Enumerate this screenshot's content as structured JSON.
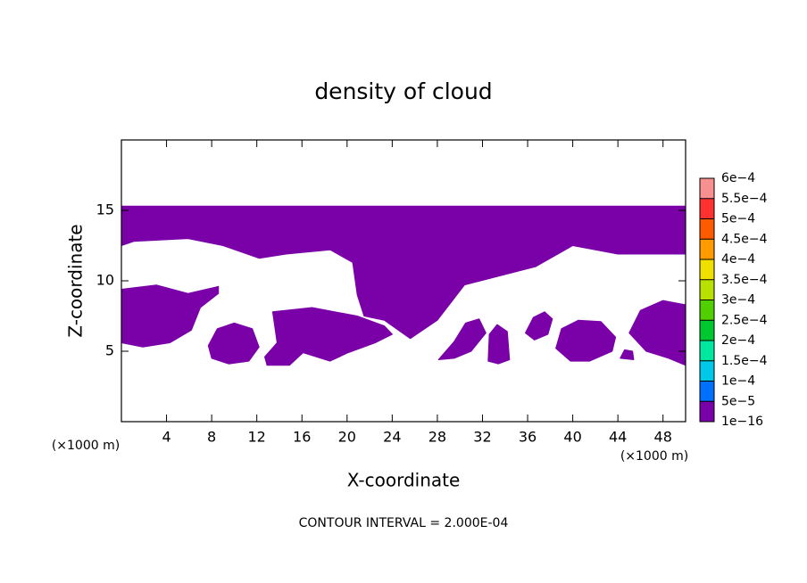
{
  "chart_data": {
    "type": "contour",
    "title": "density of cloud",
    "x_label": "X-coordinate",
    "y_label": "Z-coordinate",
    "x_unit": "(×1000 m)",
    "y_unit": "(×1000 m)",
    "annotation": "CONTOUR INTERVAL = 2.000E-04",
    "xlim": [
      0,
      50
    ],
    "ylim": [
      0,
      20
    ],
    "xticks": [
      4,
      8,
      12,
      16,
      20,
      24,
      28,
      32,
      36,
      40,
      44,
      48
    ],
    "yticks": [
      5,
      10,
      15
    ],
    "color": "#7a00a8",
    "regions": [
      {
        "x": [
          0,
          50,
          50,
          44,
          40,
          36.7,
          30.4,
          28,
          25.6,
          23.3,
          21.5,
          20.9,
          20.5,
          18.5,
          14.6,
          12.2,
          9,
          5.9,
          1.1,
          0
        ],
        "z": [
          15.3,
          15.3,
          11.9,
          11.9,
          12.5,
          11,
          9.7,
          7.2,
          5.9,
          7.2,
          7.5,
          9,
          11.3,
          12.2,
          11.9,
          11.6,
          12.5,
          13,
          12.8,
          12.5
        ]
      },
      {
        "x": [
          13.4,
          16.9,
          20.9,
          23.3,
          24,
          22.5,
          20.1,
          18.5,
          16.1,
          14.9,
          12.9,
          12.7,
          13.8
        ],
        "z": [
          7.8,
          8.1,
          7.5,
          6.8,
          6.2,
          5.6,
          4.9,
          4.3,
          4.9,
          4,
          4,
          4.6,
          5.6
        ]
      },
      {
        "x": [
          0,
          3.1,
          5.9,
          8.6,
          8.6,
          7,
          6.2,
          4.3,
          1.9,
          0
        ],
        "z": [
          9.4,
          9.7,
          9.1,
          9.6,
          9.1,
          8.1,
          6.5,
          5.6,
          5.3,
          5.6
        ]
      },
      {
        "x": [
          7.7,
          8.5,
          10,
          11.6,
          12.2,
          11.3,
          9.5,
          8
        ],
        "z": [
          5.4,
          6.6,
          7,
          6.6,
          5.3,
          4.3,
          4.1,
          4.5
        ]
      },
      {
        "x": [
          28.1,
          29.5,
          30.5,
          31.7,
          32.3,
          31,
          29.5
        ],
        "z": [
          4.4,
          5.7,
          7,
          7.3,
          6.3,
          5,
          4.5
        ]
      },
      {
        "x": [
          32.5,
          32.6,
          33.3,
          34.2,
          34.4,
          33.4
        ],
        "z": [
          4.3,
          6.2,
          6.9,
          6.4,
          4.4,
          4.1
        ]
      },
      {
        "x": [
          35.8,
          36.5,
          37.5,
          38.2,
          37.8,
          36.6
        ],
        "z": [
          6.3,
          7.4,
          7.8,
          7.3,
          6.2,
          5.8
        ]
      },
      {
        "x": [
          38.5,
          39,
          40.5,
          42.5,
          43.8,
          43.5,
          41.5,
          39.8
        ],
        "z": [
          5.2,
          6.6,
          7.2,
          7.1,
          6,
          5,
          4.3,
          4.3
        ]
      },
      {
        "x": [
          44.2,
          44.6,
          45.3,
          45.4
        ],
        "z": [
          4.5,
          5.1,
          5,
          4.4
        ]
      },
      {
        "x": [
          45,
          46,
          48,
          50,
          50,
          48.5,
          46.5
        ],
        "z": [
          6.3,
          7.9,
          8.6,
          8.3,
          4,
          4.5,
          5
        ]
      }
    ],
    "colorbar": {
      "ticks": [
        {
          "value": 0.0006,
          "label": "6e−4"
        },
        {
          "value": 0.00055,
          "label": "5.5e−4"
        },
        {
          "value": 0.0005,
          "label": "5e−4"
        },
        {
          "value": 0.00045,
          "label": "4.5e−4"
        },
        {
          "value": 0.0004,
          "label": "4e−4"
        },
        {
          "value": 0.00035,
          "label": "3.5e−4"
        },
        {
          "value": 0.0003,
          "label": "3e−4"
        },
        {
          "value": 0.00025,
          "label": "2.5e−4"
        },
        {
          "value": 0.0002,
          "label": "2e−4"
        },
        {
          "value": 0.00015,
          "label": "1.5e−4"
        },
        {
          "value": 0.0001,
          "label": "1e−4"
        },
        {
          "value": 5e-05,
          "label": "5e−5"
        },
        {
          "value": 1e-16,
          "label": "1e−16"
        }
      ],
      "colors": [
        "#f89090",
        "#ff3030",
        "#ff5a00",
        "#ff9a00",
        "#f0e000",
        "#b8e000",
        "#50d000",
        "#00c830",
        "#00e8a0",
        "#00c8e8",
        "#0070ff",
        "#7a00a8"
      ]
    }
  }
}
